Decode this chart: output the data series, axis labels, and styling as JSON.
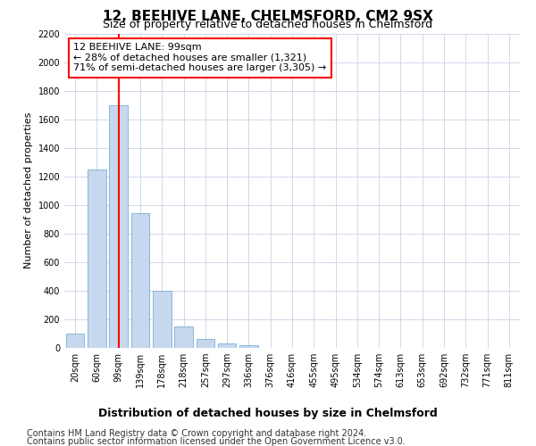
{
  "title": "12, BEEHIVE LANE, CHELMSFORD, CM2 9SX",
  "subtitle": "Size of property relative to detached houses in Chelmsford",
  "xlabel": "Distribution of detached houses by size in Chelmsford",
  "ylabel": "Number of detached properties",
  "categories": [
    "20sqm",
    "60sqm",
    "99sqm",
    "139sqm",
    "178sqm",
    "218sqm",
    "257sqm",
    "297sqm",
    "336sqm",
    "376sqm",
    "416sqm",
    "455sqm",
    "495sqm",
    "534sqm",
    "574sqm",
    "613sqm",
    "653sqm",
    "692sqm",
    "732sqm",
    "771sqm",
    "811sqm"
  ],
  "values": [
    100,
    1250,
    1700,
    940,
    400,
    150,
    65,
    30,
    20,
    0,
    0,
    0,
    0,
    0,
    0,
    0,
    0,
    0,
    0,
    0,
    0
  ],
  "bar_color": "#c5d8ee",
  "bar_edge_color": "#7bafd4",
  "vline_color": "red",
  "vline_bar_index": 2,
  "annotation_text": "12 BEEHIVE LANE: 99sqm\n← 28% of detached houses are smaller (1,321)\n71% of semi-detached houses are larger (3,305) →",
  "annotation_box_color": "white",
  "annotation_box_edge": "red",
  "ylim": [
    0,
    2200
  ],
  "yticks": [
    0,
    200,
    400,
    600,
    800,
    1000,
    1200,
    1400,
    1600,
    1800,
    2000,
    2200
  ],
  "footer1": "Contains HM Land Registry data © Crown copyright and database right 2024.",
  "footer2": "Contains public sector information licensed under the Open Government Licence v3.0.",
  "bg_color": "#ffffff",
  "plot_bg_color": "#ffffff",
  "grid_color": "#d0d8e8",
  "title_fontsize": 11,
  "subtitle_fontsize": 9,
  "xlabel_fontsize": 9,
  "ylabel_fontsize": 8,
  "tick_fontsize": 7,
  "annotation_fontsize": 8,
  "footer_fontsize": 7
}
